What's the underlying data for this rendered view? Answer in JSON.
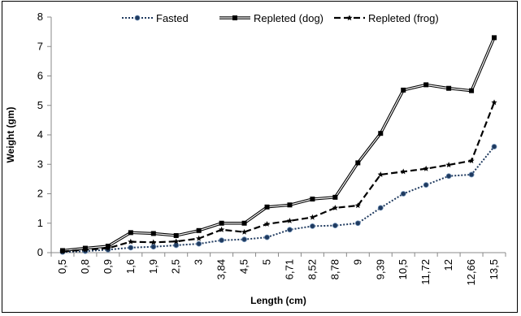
{
  "chart_data": {
    "type": "line",
    "title": "",
    "xlabel": "Length (cm)",
    "ylabel": "Weight (gm)",
    "ylim": [
      0,
      8
    ],
    "yticks": [
      "0",
      "1",
      "2",
      "3",
      "4",
      "5",
      "6",
      "7",
      "8"
    ],
    "grid": false,
    "legend_position": "top",
    "categories": [
      "0,5",
      "0,8",
      "0,9",
      "1,6",
      "1,9",
      "2,5",
      "3",
      "3,84",
      "4,5",
      "5",
      "6,71",
      "8,52",
      "8,78",
      "9",
      "9,39",
      "10,5",
      "11,72",
      "12",
      "12,66",
      "13,5"
    ],
    "series": [
      {
        "name": "Fasted",
        "style": "dotted",
        "marker": "circle",
        "color": "#1f3a5f",
        "values": [
          0.02,
          0.05,
          0.1,
          0.17,
          0.2,
          0.25,
          0.3,
          0.42,
          0.45,
          0.52,
          0.78,
          0.9,
          0.92,
          1.0,
          1.52,
          2.0,
          2.3,
          2.6,
          2.65,
          3.6
        ]
      },
      {
        "name": "Repleted (dog)",
        "style": "double-solid",
        "marker": "square",
        "color": "#000000",
        "values": [
          0.07,
          0.15,
          0.22,
          0.68,
          0.65,
          0.58,
          0.75,
          1.0,
          1.0,
          1.55,
          1.62,
          1.82,
          1.88,
          3.05,
          4.05,
          5.52,
          5.7,
          5.58,
          5.5,
          7.3
        ]
      },
      {
        "name": "Repleted (frog)",
        "style": "dashed",
        "marker": "star",
        "color": "#000000",
        "values": [
          0.04,
          0.1,
          0.15,
          0.37,
          0.35,
          0.38,
          0.48,
          0.78,
          0.7,
          0.97,
          1.08,
          1.2,
          1.52,
          1.6,
          2.65,
          2.75,
          2.85,
          2.98,
          3.12,
          5.1
        ]
      }
    ]
  }
}
